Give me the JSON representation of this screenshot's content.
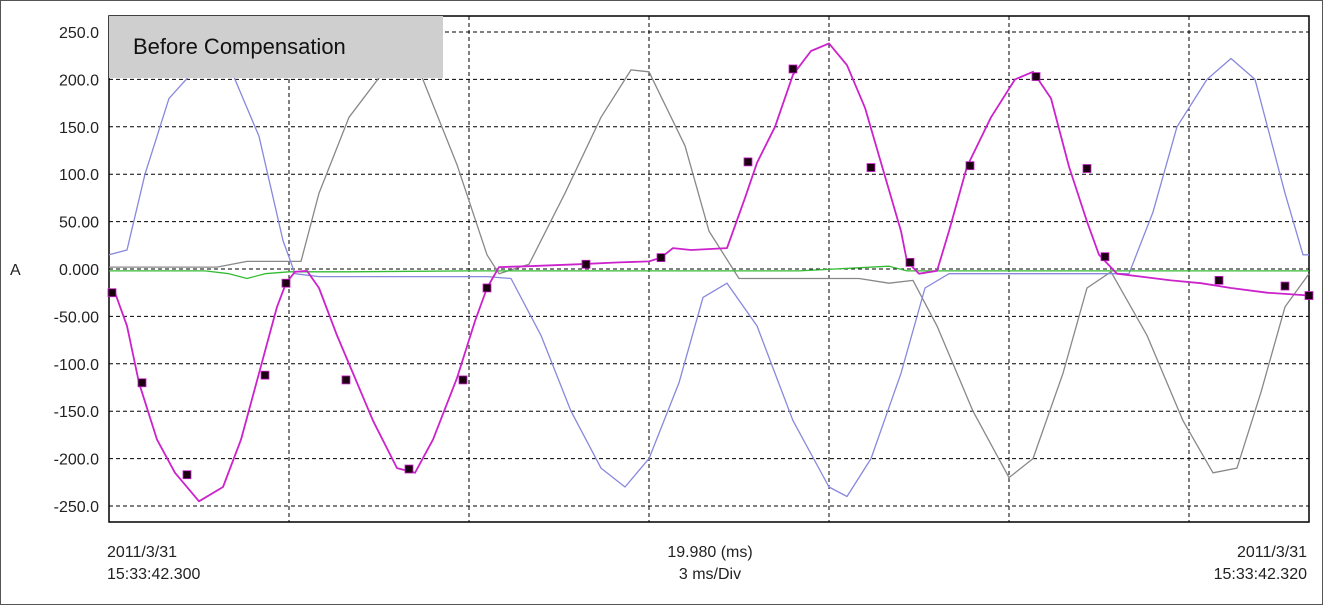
{
  "caption": "Before Compensation",
  "footer": {
    "left_date": "2011/3/31",
    "left_time": "15:33:42.300",
    "center_value": "19.980 (ms)",
    "center_div": "3 ms/Div",
    "right_date": "2011/3/31",
    "right_time": "15:33:42.320"
  },
  "chart_data": {
    "type": "line",
    "ylabel": "A",
    "ylim": [
      -270,
      270
    ],
    "xlim": [
      0,
      20
    ],
    "grid": true,
    "ytick_labels": [
      "250.0",
      "200.0",
      "150.0",
      "100.0",
      "50.00",
      "0.000",
      "-50.00",
      "-100.0",
      "-150.0",
      "-200.0",
      "-250.0"
    ],
    "ytick_values": [
      250,
      200,
      150,
      100,
      50,
      0,
      -50,
      -100,
      -150,
      -200,
      -250
    ],
    "xgrid_values": [
      3,
      6,
      9,
      12,
      15,
      18
    ],
    "colors": {
      "magenta": "#cc22cc",
      "blue": "#8888dd",
      "gray": "#888888",
      "green": "#33bb33"
    },
    "series": [
      {
        "color": "#cc22cc",
        "markers": true,
        "points": [
          [
            0.0,
            -25
          ],
          [
            0.1,
            -25
          ],
          [
            0.3,
            -60
          ],
          [
            0.5,
            -120
          ],
          [
            0.8,
            -180
          ],
          [
            1.1,
            -215
          ],
          [
            1.5,
            -245
          ],
          [
            1.9,
            -230
          ],
          [
            2.2,
            -180
          ],
          [
            2.5,
            -110
          ],
          [
            2.8,
            -40
          ],
          [
            2.95,
            -15
          ],
          [
            3.1,
            -3
          ],
          [
            3.3,
            -2
          ],
          [
            3.5,
            -20
          ],
          [
            3.8,
            -70
          ],
          [
            4.1,
            -115
          ],
          [
            4.4,
            -160
          ],
          [
            4.8,
            -210
          ],
          [
            5.1,
            -215
          ],
          [
            5.4,
            -180
          ],
          [
            5.8,
            -115
          ],
          [
            6.1,
            -55
          ],
          [
            6.3,
            -20
          ],
          [
            6.5,
            2
          ],
          [
            7.0,
            3
          ],
          [
            7.8,
            5
          ],
          [
            8.5,
            7
          ],
          [
            9.0,
            8
          ],
          [
            9.2,
            12
          ],
          [
            9.4,
            22
          ],
          [
            9.7,
            20
          ],
          [
            10.3,
            22
          ],
          [
            10.6,
            75
          ],
          [
            10.8,
            112
          ],
          [
            11.1,
            150
          ],
          [
            11.4,
            205
          ],
          [
            11.7,
            230
          ],
          [
            12.0,
            238
          ],
          [
            12.3,
            215
          ],
          [
            12.6,
            170
          ],
          [
            12.9,
            105
          ],
          [
            13.2,
            40
          ],
          [
            13.3,
            8
          ],
          [
            13.5,
            -5
          ],
          [
            13.8,
            -2
          ],
          [
            14.0,
            40
          ],
          [
            14.3,
            108
          ],
          [
            14.7,
            160
          ],
          [
            15.1,
            200
          ],
          [
            15.4,
            208
          ],
          [
            15.7,
            180
          ],
          [
            16.0,
            108
          ],
          [
            16.3,
            50
          ],
          [
            16.5,
            15
          ],
          [
            16.8,
            -5
          ],
          [
            17.2,
            -8
          ],
          [
            17.7,
            -12
          ],
          [
            18.2,
            -15
          ],
          [
            18.7,
            -20
          ],
          [
            19.3,
            -25
          ],
          [
            20.0,
            -28
          ]
        ],
        "marker_points": [
          [
            0.05,
            -25
          ],
          [
            0.55,
            -120
          ],
          [
            1.3,
            -217
          ],
          [
            2.6,
            -112
          ],
          [
            2.95,
            -15
          ],
          [
            3.95,
            -117
          ],
          [
            5.0,
            -211
          ],
          [
            5.9,
            -117
          ],
          [
            6.3,
            -20
          ],
          [
            7.95,
            5
          ],
          [
            9.2,
            12
          ],
          [
            10.65,
            113
          ],
          [
            11.4,
            211
          ],
          [
            12.7,
            107
          ],
          [
            13.35,
            7
          ],
          [
            14.35,
            109
          ],
          [
            15.45,
            203
          ],
          [
            16.3,
            106
          ],
          [
            16.6,
            13
          ],
          [
            18.5,
            -12
          ],
          [
            19.6,
            -18
          ],
          [
            20.0,
            -28
          ]
        ]
      },
      {
        "color": "#8888dd",
        "markers": false,
        "points": [
          [
            0.0,
            15
          ],
          [
            0.3,
            20
          ],
          [
            0.6,
            100
          ],
          [
            1.0,
            180
          ],
          [
            1.5,
            215
          ],
          [
            2.0,
            215
          ],
          [
            2.5,
            140
          ],
          [
            2.9,
            30
          ],
          [
            3.1,
            -5
          ],
          [
            3.5,
            -8
          ],
          [
            4.5,
            -8
          ],
          [
            5.5,
            -8
          ],
          [
            6.3,
            -8
          ],
          [
            6.7,
            -10
          ],
          [
            7.2,
            -70
          ],
          [
            7.7,
            -150
          ],
          [
            8.2,
            -210
          ],
          [
            8.6,
            -230
          ],
          [
            9.0,
            -200
          ],
          [
            9.5,
            -120
          ],
          [
            9.9,
            -30
          ],
          [
            10.3,
            -15
          ],
          [
            10.8,
            -60
          ],
          [
            11.4,
            -160
          ],
          [
            12.0,
            -230
          ],
          [
            12.3,
            -240
          ],
          [
            12.7,
            -200
          ],
          [
            13.2,
            -110
          ],
          [
            13.6,
            -20
          ],
          [
            14.0,
            -5
          ],
          [
            15.5,
            -5
          ],
          [
            16.5,
            -5
          ],
          [
            17.0,
            -5
          ],
          [
            17.4,
            60
          ],
          [
            17.8,
            150
          ],
          [
            18.3,
            200
          ],
          [
            18.7,
            222
          ],
          [
            19.1,
            200
          ],
          [
            19.6,
            80
          ],
          [
            19.9,
            15
          ],
          [
            20.0,
            15
          ]
        ]
      },
      {
        "color": "#888888",
        "markers": false,
        "points": [
          [
            0.0,
            2
          ],
          [
            1.8,
            2
          ],
          [
            2.3,
            8
          ],
          [
            2.8,
            8
          ],
          [
            3.2,
            8
          ],
          [
            3.5,
            80
          ],
          [
            4.0,
            160
          ],
          [
            4.6,
            210
          ],
          [
            5.2,
            205
          ],
          [
            5.8,
            110
          ],
          [
            6.3,
            15
          ],
          [
            6.5,
            -5
          ],
          [
            7.0,
            5
          ],
          [
            7.6,
            80
          ],
          [
            8.2,
            160
          ],
          [
            8.7,
            210
          ],
          [
            9.0,
            208
          ],
          [
            9.6,
            130
          ],
          [
            10.0,
            40
          ],
          [
            10.5,
            -10
          ],
          [
            11.5,
            -10
          ],
          [
            12.5,
            -10
          ],
          [
            13.0,
            -15
          ],
          [
            13.4,
            -12
          ],
          [
            13.8,
            -60
          ],
          [
            14.4,
            -150
          ],
          [
            15.0,
            -220
          ],
          [
            15.4,
            -200
          ],
          [
            15.9,
            -110
          ],
          [
            16.3,
            -20
          ],
          [
            16.7,
            -3
          ],
          [
            17.3,
            -70
          ],
          [
            17.9,
            -160
          ],
          [
            18.4,
            -215
          ],
          [
            18.8,
            -210
          ],
          [
            19.2,
            -130
          ],
          [
            19.6,
            -40
          ],
          [
            20.0,
            -5
          ]
        ]
      },
      {
        "color": "#33bb33",
        "markers": false,
        "points": [
          [
            0.0,
            -2
          ],
          [
            1.6,
            -2
          ],
          [
            2.0,
            -5
          ],
          [
            2.3,
            -10
          ],
          [
            2.6,
            -5
          ],
          [
            3.0,
            -3
          ],
          [
            4.0,
            -3
          ],
          [
            6.0,
            -2
          ],
          [
            8.0,
            -2
          ],
          [
            10.0,
            -2
          ],
          [
            11.5,
            -2
          ],
          [
            13.0,
            3
          ],
          [
            13.3,
            -2
          ],
          [
            14.5,
            -2
          ],
          [
            16.5,
            -2
          ],
          [
            18.0,
            -2
          ],
          [
            20.0,
            -2
          ]
        ]
      }
    ]
  }
}
